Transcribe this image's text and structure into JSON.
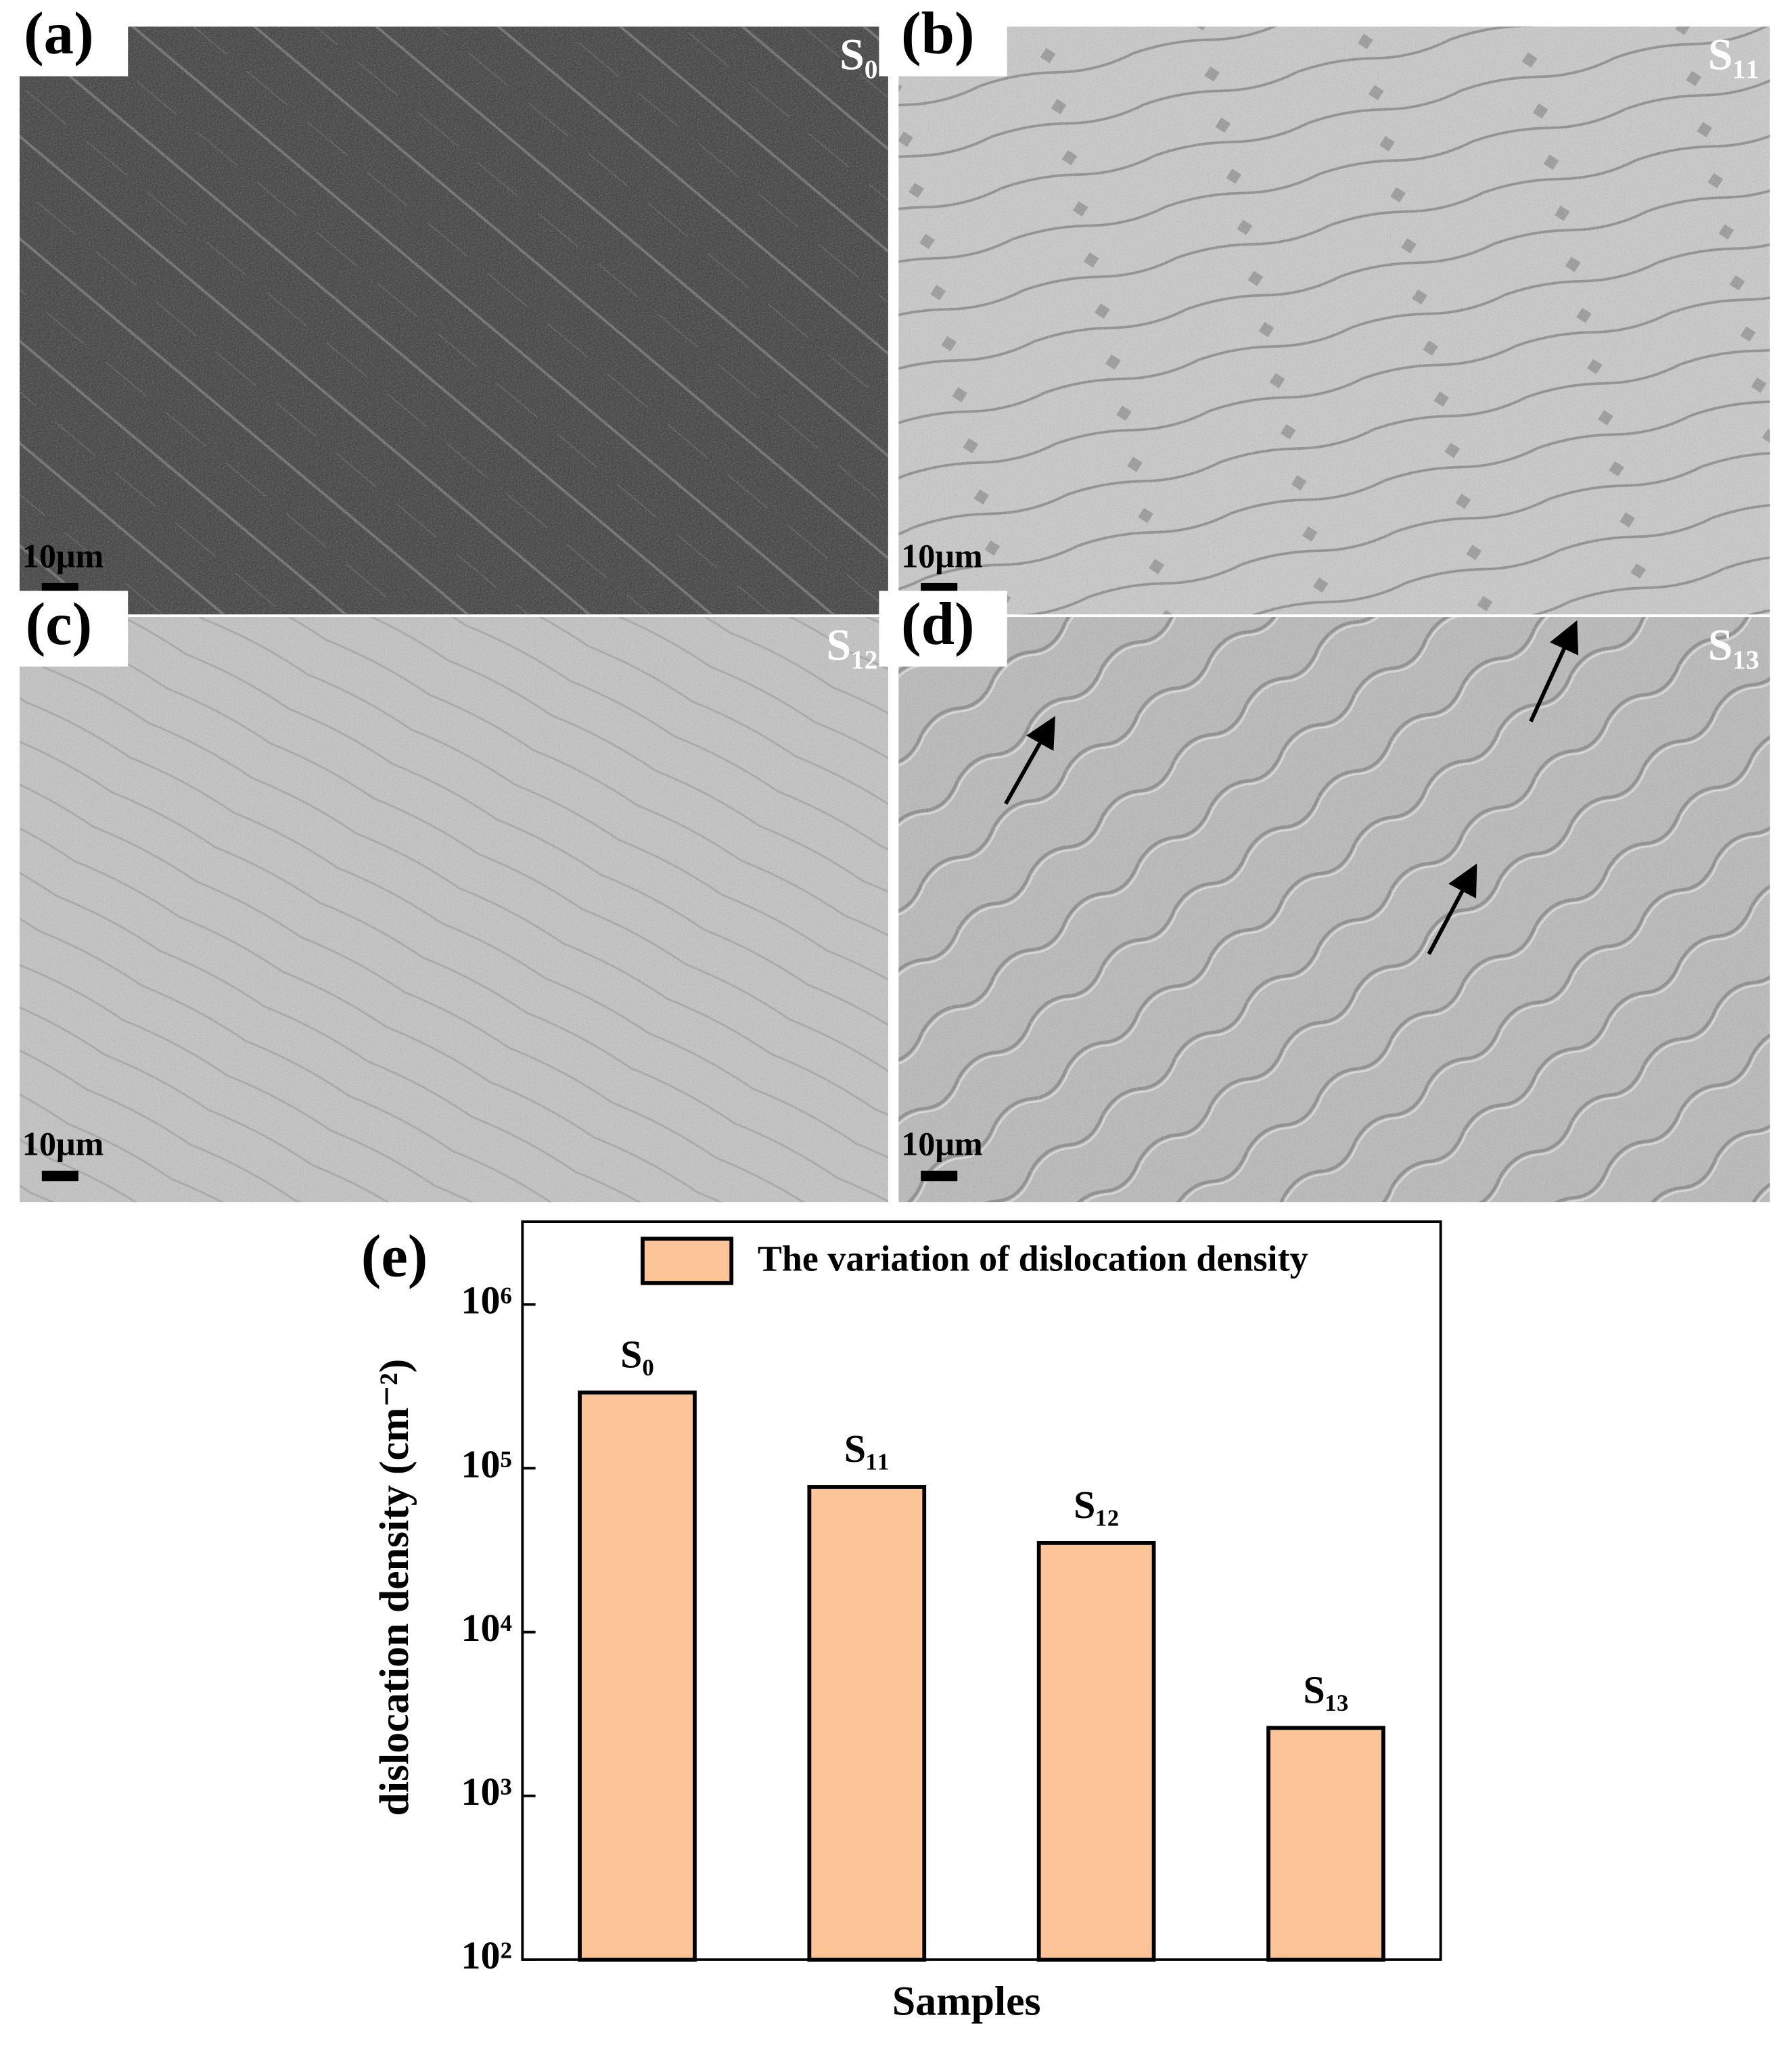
{
  "panels": [
    {
      "label": "(a)",
      "sample": "S₀",
      "scale": "10μm"
    },
    {
      "label": "(b)",
      "sample": "S₁₁",
      "scale": "10μm"
    },
    {
      "label": "(c)",
      "sample": "S₁₂",
      "scale": "10μm"
    },
    {
      "label": "(d)",
      "sample": "S₁₃",
      "scale": "10μm"
    }
  ],
  "chart_data": {
    "type": "bar",
    "panel_label": "(e)",
    "ylabel": "dislocation density (cm⁻²)",
    "xlabel": "Samples",
    "categories": [
      "S₀",
      "S₁₁",
      "S₁₂",
      "S₁₃"
    ],
    "series": [
      {
        "name": "The variation of dislocation density",
        "color": "#fdc497",
        "values": [
          290000,
          77000,
          35000,
          2600
        ]
      }
    ],
    "log_scale": true,
    "ylim": [
      100,
      3200000
    ],
    "yticks": [
      {
        "value": 100,
        "label": "10²"
      },
      {
        "value": 1000,
        "label": "10³"
      },
      {
        "value": 10000,
        "label": "10⁴"
      },
      {
        "value": 100000,
        "label": "10⁵"
      },
      {
        "value": 1000000,
        "label": "10⁶"
      }
    ]
  }
}
